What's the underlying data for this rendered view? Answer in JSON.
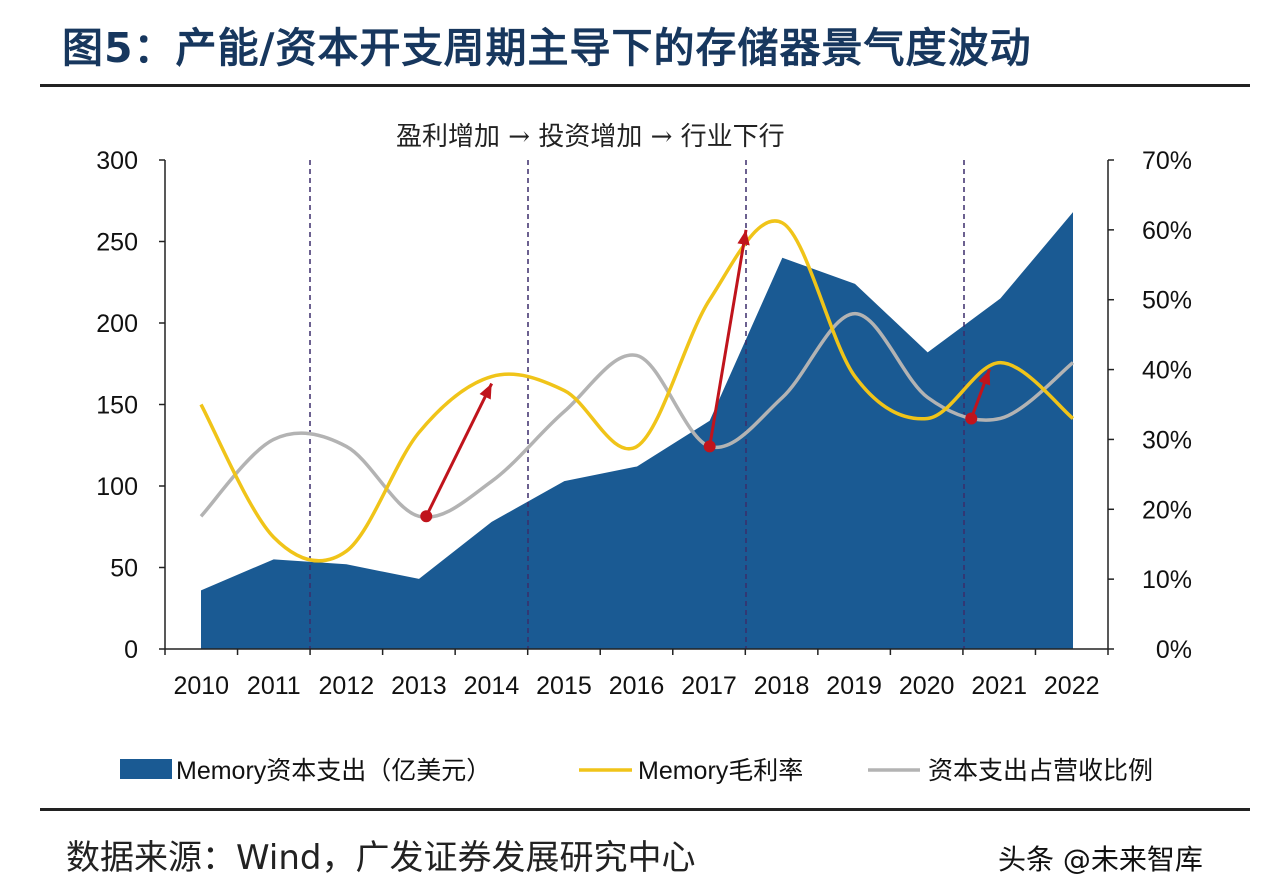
{
  "title": "图5：产能/资本开支周期主导下的存储器景气度波动",
  "annotation": "盈利增加 → 投资增加 → 行业下行",
  "source": "数据来源：Wind，广发证券发展研究中心",
  "watermark": "头条 @未来智库",
  "colors": {
    "area": "#1a5a93",
    "margin_line": "#f0c419",
    "ratio_line": "#b3b3b3",
    "arrow": "#c0141c",
    "title": "#17375e"
  },
  "chart_data": {
    "type": "area+line",
    "categories": [
      "2010",
      "2011",
      "2012",
      "2013",
      "2014",
      "2015",
      "2016",
      "2017",
      "2018",
      "2019",
      "2020",
      "2021",
      "2022"
    ],
    "left_axis": {
      "min": 0,
      "max": 300,
      "ticks": [
        "0",
        "50",
        "100",
        "150",
        "200",
        "250",
        "300"
      ]
    },
    "right_axis": {
      "min": 0,
      "max": 70,
      "ticks": [
        "0%",
        "10%",
        "20%",
        "30%",
        "40%",
        "50%",
        "60%",
        "70%"
      ]
    },
    "series": [
      {
        "name": "Memory资本支出（亿美元）",
        "axis": "left",
        "type": "area",
        "values": [
          36,
          55,
          52,
          43,
          78,
          103,
          112,
          140,
          240,
          224,
          182,
          215,
          268
        ]
      },
      {
        "name": "Memory毛利率",
        "axis": "right",
        "type": "line",
        "values": [
          35,
          16,
          14,
          31,
          39,
          37,
          29,
          50,
          61,
          39,
          33,
          41,
          33
        ]
      },
      {
        "name": "资本支出占营收比例",
        "axis": "right",
        "type": "line",
        "values": [
          19,
          30,
          29,
          19,
          24,
          34,
          42,
          29,
          36,
          48,
          36,
          33,
          41
        ]
      }
    ],
    "cycle_markers": [
      "2011.5",
      "2014.5",
      "2017.5",
      "2020.5"
    ],
    "arrows": [
      {
        "from_year": 2013.1,
        "from_pct": 19,
        "to_year": 2014,
        "to_pct": 38
      },
      {
        "from_year": 2017,
        "from_pct": 29,
        "to_year": 2017.5,
        "to_pct": 60
      },
      {
        "from_year": 2020.6,
        "from_pct": 33,
        "to_year": 2020.85,
        "to_pct": 40
      }
    ],
    "legend_position": "bottom"
  }
}
